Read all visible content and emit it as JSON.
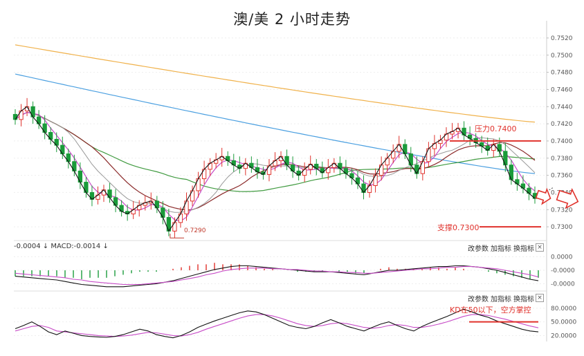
{
  "title": "澳/美 2 小时走势",
  "colors": {
    "up": "#e0312b",
    "down": "#1a9b3a",
    "ma_orange": "#f0b14a",
    "ma_blue": "#4a9fe0",
    "ma_green": "#3f9a3f",
    "ma_darkred": "#8b2a2a",
    "ma_pink": "#c74bc7",
    "ma_gray": "#999999",
    "price_black": "#111111",
    "annotation": "#e0312b"
  },
  "annotations": {
    "resistance": "压力0.7400",
    "support": "支撑0.7300",
    "low_marker": "0.7290",
    "kd_note": "KD在50以下，空方掌控"
  },
  "macd_panel": {
    "label": "-0.0004 ↓ MACD:-0.0014 ↓",
    "buttons": [
      "改参数",
      "加指标",
      "换指标"
    ],
    "close": "×"
  },
  "kd_panel": {
    "buttons": [
      "改参数",
      "加指标",
      "换指标"
    ],
    "close": "×"
  },
  "chart_data": [
    {
      "type": "candlestick",
      "name": "price",
      "y_axis_ticks": [
        "0.7520",
        "0.7500",
        "0.7480",
        "0.7460",
        "0.7440",
        "0.7420",
        "0.7400",
        "0.7380",
        "0.7360",
        "0.7340",
        "0.7320",
        "0.7300"
      ],
      "ylim": [
        0.7288,
        0.7528
      ],
      "resistance_level": 0.74,
      "support_level": 0.73,
      "close": [
        0.7425,
        0.7435,
        0.744,
        0.7428,
        0.742,
        0.741,
        0.7402,
        0.7395,
        0.7385,
        0.7376,
        0.7365,
        0.7352,
        0.734,
        0.7332,
        0.7337,
        0.7343,
        0.7334,
        0.7325,
        0.7318,
        0.7315,
        0.732,
        0.7325,
        0.7328,
        0.733,
        0.7322,
        0.7311,
        0.7295,
        0.7305,
        0.7315,
        0.733,
        0.7342,
        0.7356,
        0.7367,
        0.7374,
        0.7378,
        0.7382,
        0.7377,
        0.7372,
        0.7368,
        0.7374,
        0.7369,
        0.7364,
        0.7361,
        0.7371,
        0.7377,
        0.7382,
        0.7372,
        0.7365,
        0.736,
        0.7367,
        0.7373,
        0.7368,
        0.7363,
        0.7369,
        0.7374,
        0.7368,
        0.7362,
        0.7357,
        0.735,
        0.734,
        0.7348,
        0.736,
        0.7372,
        0.738,
        0.7388,
        0.7396,
        0.7385,
        0.7372,
        0.7362,
        0.7376,
        0.7391,
        0.7397,
        0.7401,
        0.7408,
        0.7411,
        0.7415,
        0.7407,
        0.7403,
        0.7398,
        0.7394,
        0.7389,
        0.7396,
        0.7388,
        0.7372,
        0.7355,
        0.735,
        0.7345,
        0.7339,
        0.7333
      ]
    },
    {
      "type": "bar",
      "name": "MACD",
      "ylim": [
        -0.0025,
        0.0025
      ],
      "y_axis_ticks": [
        "0.0000",
        "-0.0000",
        "-0.0000"
      ],
      "dif": [
        -0.0008,
        -0.0009,
        -0.001,
        -0.0011,
        -0.0012,
        -0.0013,
        -0.0015,
        -0.0017,
        -0.0019,
        -0.002,
        -0.0021,
        -0.0022,
        -0.0022,
        -0.0022,
        -0.0021,
        -0.002,
        -0.0019,
        -0.0018,
        -0.0016,
        -0.0014,
        -0.0011,
        -0.0008,
        -0.0005,
        -0.0002,
        0.0001,
        0.0003,
        0.0005,
        0.0006,
        0.0006,
        0.0005,
        0.0004,
        0.0003,
        0.0002,
        0.0001,
        0.0,
        -0.0001,
        -0.0002,
        -0.0002,
        -0.0002,
        -0.0003,
        -0.0004,
        -0.0005,
        -0.0006,
        -0.0004,
        -0.0002,
        0.0,
        0.0,
        0.0001,
        0.0002,
        0.0003,
        0.0004,
        0.0005,
        0.0005,
        0.0006,
        0.0006,
        0.0005,
        0.0004,
        0.0002,
        0.0,
        -0.0003,
        -0.0006,
        -0.0009,
        -0.0012,
        -0.0014
      ],
      "dea": [
        -0.0004,
        -0.0005,
        -0.0006,
        -0.0007,
        -0.0008,
        -0.0009,
        -0.001,
        -0.0012,
        -0.0013,
        -0.0015,
        -0.0016,
        -0.0017,
        -0.0018,
        -0.0019,
        -0.0019,
        -0.0019,
        -0.0018,
        -0.0017,
        -0.0016,
        -0.0015,
        -0.0013,
        -0.0011,
        -0.0009,
        -0.0006,
        -0.0004,
        -0.0001,
        0.0001,
        0.0002,
        0.0003,
        0.0003,
        0.0003,
        0.0002,
        0.0002,
        0.0001,
        0.0001,
        0.0,
        -0.0001,
        -0.0001,
        -0.0002,
        -0.0002,
        -0.0003,
        -0.0003,
        -0.0004,
        -0.0004,
        -0.0003,
        -0.0002,
        -0.0001,
        0.0,
        0.0001,
        0.0002,
        0.0002,
        0.0003,
        0.0004,
        0.0004,
        0.0005,
        0.0005,
        0.0004,
        0.0003,
        0.0002,
        0.0,
        -0.0002,
        -0.0004,
        -0.0006,
        -0.0009
      ]
    },
    {
      "type": "line",
      "name": "KD",
      "ylim": [
        10,
        95
      ],
      "y_axis_ticks": [
        "80.0000",
        "50.0000",
        "20.0000"
      ],
      "k": [
        35,
        42,
        50,
        40,
        28,
        22,
        30,
        25,
        20,
        18,
        17,
        16,
        18,
        22,
        28,
        34,
        30,
        22,
        18,
        15,
        20,
        28,
        38,
        45,
        52,
        58,
        64,
        70,
        74,
        72,
        66,
        58,
        50,
        42,
        38,
        35,
        40,
        48,
        55,
        48,
        40,
        35,
        30,
        38,
        45,
        50,
        42,
        35,
        30,
        40,
        48,
        55,
        62,
        70,
        78,
        72,
        65,
        60,
        52,
        46,
        40,
        34,
        30,
        28
      ],
      "d": [
        30,
        35,
        40,
        42,
        38,
        30,
        28,
        26,
        24,
        22,
        20,
        19,
        18,
        19,
        21,
        24,
        27,
        26,
        23,
        20,
        19,
        22,
        27,
        34,
        40,
        46,
        52,
        58,
        63,
        66,
        66,
        63,
        58,
        52,
        46,
        42,
        40,
        42,
        46,
        48,
        46,
        42,
        38,
        36,
        38,
        42,
        44,
        42,
        38,
        38,
        41,
        45,
        50,
        56,
        62,
        66,
        66,
        64,
        60,
        56,
        51,
        46,
        41,
        37
      ]
    }
  ]
}
